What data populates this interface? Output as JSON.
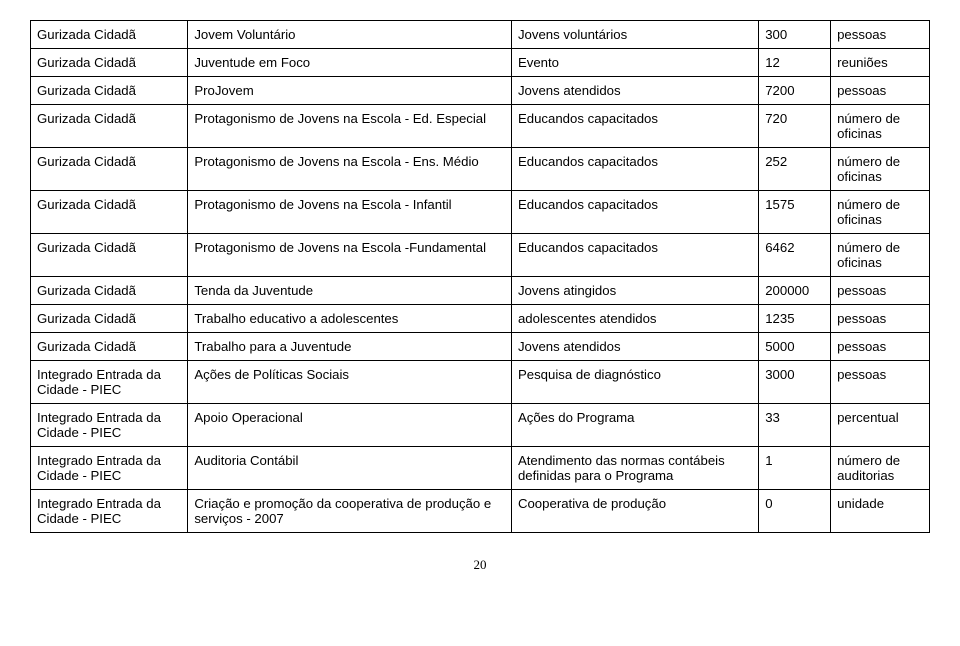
{
  "rows": [
    {
      "prog": "Gurizada Cidadã",
      "act": "Jovem Voluntário",
      "ind": "Jovens voluntários",
      "num": "300",
      "unit": "pessoas"
    },
    {
      "prog": "Gurizada Cidadã",
      "act": "Juventude em Foco",
      "ind": "Evento",
      "num": "12",
      "unit": "reuniões"
    },
    {
      "prog": "Gurizada Cidadã",
      "act": "ProJovem",
      "ind": "Jovens atendidos",
      "num": "7200",
      "unit": "pessoas"
    },
    {
      "prog": "Gurizada Cidadã",
      "act": "Protagonismo de Jovens na Escola - Ed. Especial",
      "ind": "Educandos capacitados",
      "num": "720",
      "unit": "número de oficinas"
    },
    {
      "prog": "Gurizada Cidadã",
      "act": "Protagonismo de Jovens na Escola - Ens. Médio",
      "ind": "Educandos capacitados",
      "num": "252",
      "unit": "número de oficinas"
    },
    {
      "prog": "Gurizada Cidadã",
      "act": "Protagonismo de Jovens na Escola - Infantil",
      "ind": "Educandos capacitados",
      "num": "1575",
      "unit": "número de oficinas"
    },
    {
      "prog": "Gurizada Cidadã",
      "act": "Protagonismo de Jovens na Escola -Fundamental",
      "ind": "Educandos capacitados",
      "num": "6462",
      "unit": "número de oficinas"
    },
    {
      "prog": "Gurizada Cidadã",
      "act": "Tenda da Juventude",
      "ind": "Jovens atingidos",
      "num": "200000",
      "unit": "pessoas"
    },
    {
      "prog": "Gurizada Cidadã",
      "act": "Trabalho educativo a adolescentes",
      "ind": "adolescentes atendidos",
      "num": "1235",
      "unit": "pessoas"
    },
    {
      "prog": "Gurizada Cidadã",
      "act": "Trabalho para a Juventude",
      "ind": "Jovens atendidos",
      "num": "5000",
      "unit": "pessoas"
    },
    {
      "prog": "Integrado Entrada da Cidade - PIEC",
      "act": "Ações de Políticas Sociais",
      "ind": "Pesquisa de diagnóstico",
      "num": "3000",
      "unit": "pessoas"
    },
    {
      "prog": "Integrado Entrada da Cidade - PIEC",
      "act": "Apoio Operacional",
      "ind": "Ações do Programa",
      "num": "33",
      "unit": "percentual"
    },
    {
      "prog": "Integrado Entrada da Cidade - PIEC",
      "act": "Auditoria Contábil",
      "ind": "Atendimento das normas contábeis definidas para o Programa",
      "num": "1",
      "unit": "número de auditorias"
    },
    {
      "prog": "Integrado Entrada da Cidade - PIEC",
      "act": "Criação e promoção da cooperativa de produção e serviços - 2007",
      "ind": "Cooperativa de produção",
      "num": "0",
      "unit": "unidade"
    }
  ],
  "page_number": "20"
}
